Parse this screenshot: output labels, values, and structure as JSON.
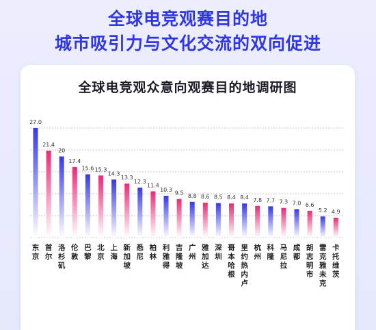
{
  "header": {
    "line1": "全球电竞观赛目的地",
    "line2": "城市吸引力与文化交流的双向促进"
  },
  "colors": {
    "blue_top": "#3537ec",
    "pink_top": "#ea2a74",
    "bar_bottom": "#ffffff",
    "headline": "#2f36e8",
    "gridline": "#8a8a8a"
  },
  "chart_data": {
    "type": "bar",
    "title": "全球电竞观众意向观赛目的地调研图",
    "xlabel": "",
    "ylabel": "",
    "ylim": [
      0,
      27.0
    ],
    "grid": true,
    "value_labels": [
      "27.0",
      "21.4",
      "20",
      "17.4",
      "15.6",
      "15.3",
      "14.3",
      "13.3",
      "12.3",
      "11.4",
      "10.3",
      "9.5",
      "8.8",
      "8.6",
      "8.5",
      "8.4",
      "8.4",
      "7.8",
      "7.7",
      "7.3",
      "7.0",
      "6.6",
      "5.2",
      "4.9"
    ],
    "categories": [
      "东京",
      "首尔",
      "洛杉矶",
      "伦敦",
      "巴黎",
      "北京",
      "上海",
      "新加坡",
      "悉尼",
      "柏林",
      "利雅得",
      "吉隆坡",
      "广州",
      "雅加达",
      "深圳",
      "哥本哈根",
      "里约热内卢",
      "杭州",
      "科隆",
      "马尼拉",
      "成都",
      "胡志明市",
      "雷克雅未克",
      "卡托维茨"
    ],
    "values": [
      27.0,
      21.4,
      20.0,
      17.4,
      15.6,
      15.3,
      14.3,
      13.3,
      12.3,
      11.4,
      10.3,
      9.5,
      8.8,
      8.6,
      8.5,
      8.4,
      8.4,
      7.8,
      7.7,
      7.3,
      7.0,
      6.6,
      5.2,
      4.9
    ],
    "bar_colors": [
      "blue",
      "pink",
      "blue",
      "pink",
      "blue",
      "pink",
      "blue",
      "pink",
      "blue",
      "pink",
      "blue",
      "pink",
      "blue",
      "pink",
      "blue",
      "pink",
      "blue",
      "pink",
      "blue",
      "pink",
      "blue",
      "pink",
      "blue",
      "pink"
    ]
  }
}
